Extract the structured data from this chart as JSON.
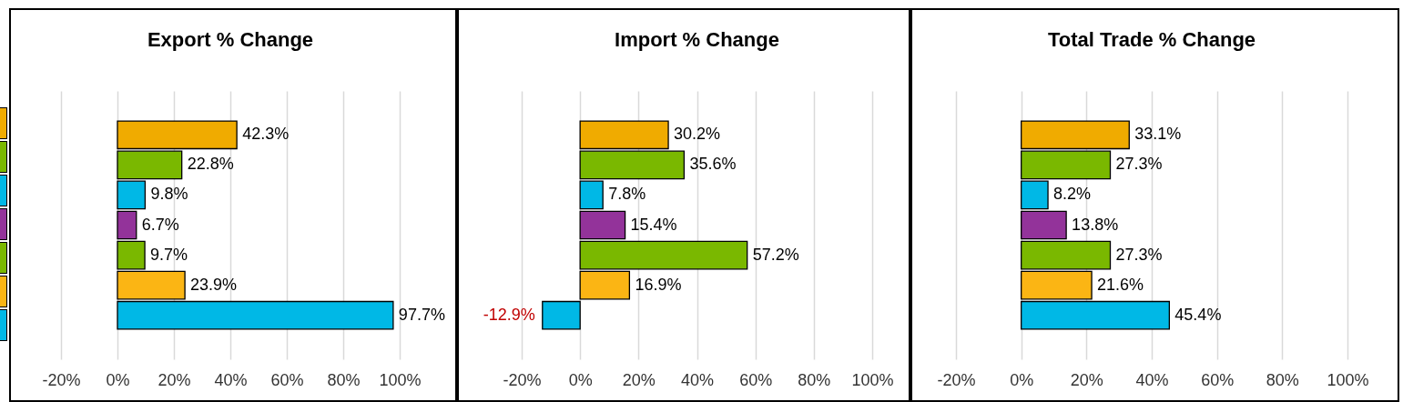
{
  "chart_data": [
    {
      "type": "bar",
      "orientation": "horizontal",
      "title": "Export % Change",
      "categories": [
        null,
        null,
        null,
        null,
        null,
        null,
        null
      ],
      "values": [
        42.3,
        22.8,
        9.8,
        6.7,
        9.7,
        23.9,
        97.7
      ],
      "colors": [
        "#f0ab00",
        "#7ab800",
        "#00b8e6",
        "#93339a",
        "#7ab800",
        "#fbb514",
        "#00b8e6"
      ],
      "value_labels": [
        "42.3%",
        "22.8%",
        "9.8%",
        "6.7%",
        "9.7%",
        "23.9%",
        "97.7%"
      ],
      "xlim": [
        -20,
        100
      ],
      "xticks": [
        {
          "value": -20,
          "label": "-20%"
        },
        {
          "value": 0,
          "label": "0%"
        },
        {
          "value": 20,
          "label": "20%"
        },
        {
          "value": 40,
          "label": "40%"
        },
        {
          "value": 60,
          "label": "60%"
        },
        {
          "value": 80,
          "label": "80%"
        },
        {
          "value": 100,
          "label": "100%"
        }
      ],
      "grid": "x",
      "tick_labels": "x"
    },
    {
      "type": "bar",
      "orientation": "horizontal",
      "title": "Import % Change",
      "categories": [
        null,
        null,
        null,
        null,
        null,
        null,
        null
      ],
      "values": [
        30.2,
        35.6,
        7.8,
        15.4,
        57.2,
        16.9,
        -12.9
      ],
      "colors": [
        "#f0ab00",
        "#7ab800",
        "#00b8e6",
        "#93339a",
        "#7ab800",
        "#fbb514",
        "#00b8e6"
      ],
      "value_labels": [
        "30.2%",
        "35.6%",
        "7.8%",
        "15.4%",
        "57.2%",
        "16.9%",
        "-12.9%"
      ],
      "xlim": [
        -20,
        100
      ],
      "xticks": [
        {
          "value": -20,
          "label": "-20%"
        },
        {
          "value": 0,
          "label": "0%"
        },
        {
          "value": 20,
          "label": "20%"
        },
        {
          "value": 40,
          "label": "40%"
        },
        {
          "value": 60,
          "label": "60%"
        },
        {
          "value": 80,
          "label": "80%"
        },
        {
          "value": 100,
          "label": "100%"
        }
      ],
      "grid": "x",
      "tick_labels": "x"
    },
    {
      "type": "bar",
      "orientation": "horizontal",
      "title": "Total Trade % Change",
      "categories": [
        null,
        null,
        null,
        null,
        null,
        null,
        null
      ],
      "values": [
        33.1,
        27.3,
        8.2,
        13.8,
        27.3,
        21.6,
        45.4
      ],
      "colors": [
        "#f0ab00",
        "#7ab800",
        "#00b8e6",
        "#93339a",
        "#7ab800",
        "#fbb514",
        "#00b8e6"
      ],
      "value_labels": [
        "33.1%",
        "27.3%",
        "8.2%",
        "13.8%",
        "27.3%",
        "21.6%",
        "45.4%"
      ],
      "xlim": [
        -20,
        100
      ],
      "xticks": [
        {
          "value": -20,
          "label": "-20%"
        },
        {
          "value": 0,
          "label": "0%"
        },
        {
          "value": 20,
          "label": "20%"
        },
        {
          "value": 40,
          "label": "40%"
        },
        {
          "value": 60,
          "label": "60%"
        },
        {
          "value": 80,
          "label": "80%"
        },
        {
          "value": 100,
          "label": "100%"
        }
      ],
      "grid": "x",
      "tick_labels": "x"
    }
  ]
}
